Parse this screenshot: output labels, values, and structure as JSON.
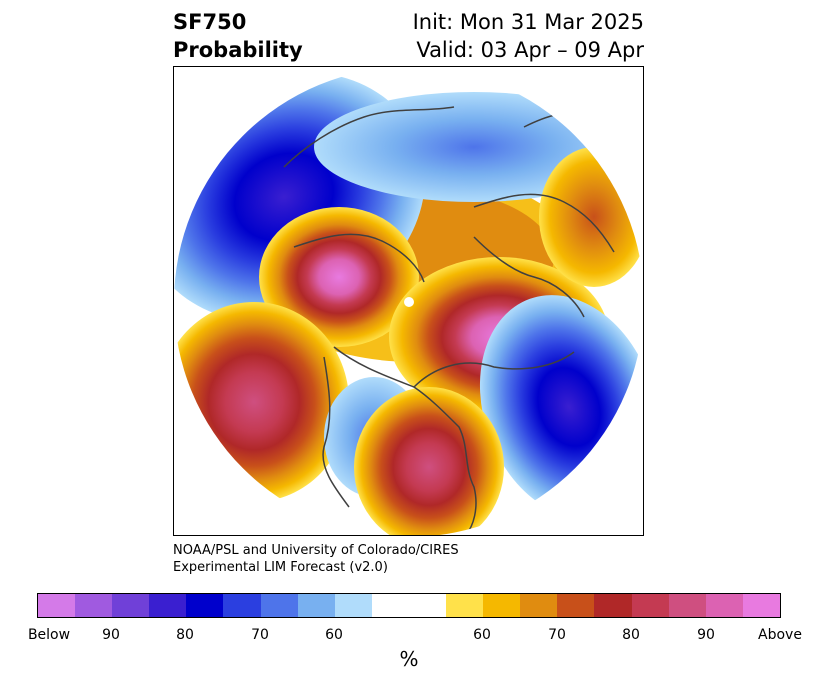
{
  "header": {
    "variable": "SF750",
    "product": "Probability",
    "init": "Init: Mon 31 Mar 2025",
    "valid": "Valid: 03 Apr – 09 Apr"
  },
  "credit": {
    "line1": "NOAA/PSL and University of Colorado/CIRES",
    "line2": "Experimental LIM Forecast (v2.0)"
  },
  "colorbar": {
    "colors": [
      "#d47ae8",
      "#a05ae0",
      "#7040d8",
      "#3a1fd0",
      "#0000cc",
      "#2b3fe0",
      "#4e74ea",
      "#78b0f0",
      "#b0dcfb",
      "#ffffff",
      "#ffe14a",
      "#f5b800",
      "#e08c10",
      "#c8501a",
      "#b02828",
      "#c43a52",
      "#cf4f80",
      "#dc62b2",
      "#e87ae0"
    ],
    "tick_labels": [
      "Below",
      "90",
      "80",
      "70",
      "60",
      "60",
      "70",
      "80",
      "90",
      "Above"
    ],
    "unit": "%"
  }
}
